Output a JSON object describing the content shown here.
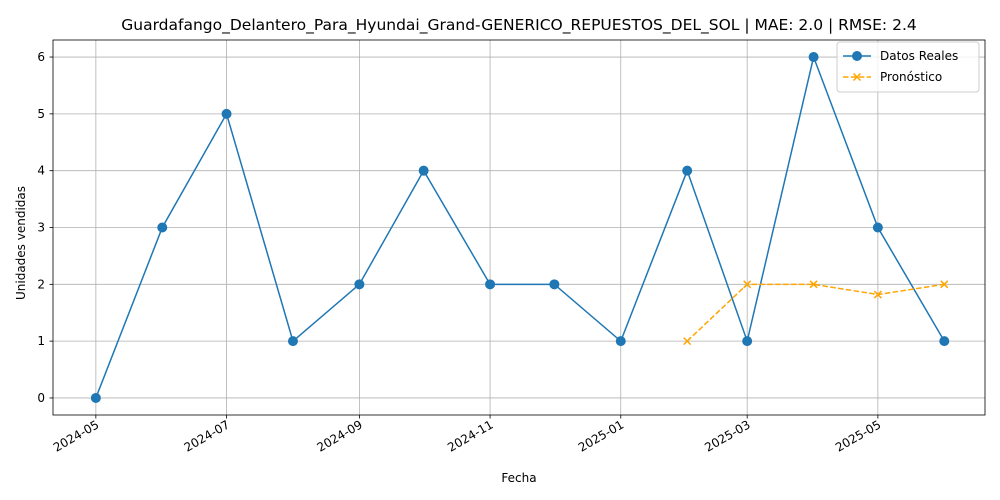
{
  "chart_data": {
    "type": "line",
    "title": "Guardafango_Delantero_Para_Hyundai_Grand-GENERICO_REPUESTOS_DEL_SOL | MAE: 2.0 | RMSE: 2.4",
    "xlabel": "Fecha",
    "ylabel": "Unidades vendidas",
    "x_ticks": [
      "2024-05",
      "2024-07",
      "2024-09",
      "2024-11",
      "2025-01",
      "2025-03",
      "2025-05"
    ],
    "y_ticks": [
      0,
      1,
      2,
      3,
      4,
      5,
      6
    ],
    "ylim": [
      -0.3,
      6.3
    ],
    "xlim": [
      "2024-04-11",
      "2025-06-20"
    ],
    "grid": true,
    "legend_position": "top-right",
    "series": [
      {
        "name": "Datos Reales",
        "color": "#1f77b4",
        "line_style": "solid",
        "marker": "circle",
        "x": [
          "2024-05-01",
          "2024-06-01",
          "2024-07-01",
          "2024-08-01",
          "2024-09-01",
          "2024-10-01",
          "2024-11-01",
          "2024-12-01",
          "2025-01-01",
          "2025-02-01",
          "2025-03-01",
          "2025-04-01",
          "2025-05-01",
          "2025-06-01"
        ],
        "values": [
          0,
          3,
          5,
          1,
          2,
          4,
          2,
          2,
          1,
          4,
          1,
          6,
          3,
          1
        ]
      },
      {
        "name": "Pronóstico",
        "color": "#ffa500",
        "line_style": "dashed",
        "marker": "x",
        "x": [
          "2025-02-01",
          "2025-03-01",
          "2025-04-01",
          "2025-05-01",
          "2025-06-01"
        ],
        "values": [
          1,
          2,
          2,
          1.82,
          2
        ]
      }
    ]
  }
}
